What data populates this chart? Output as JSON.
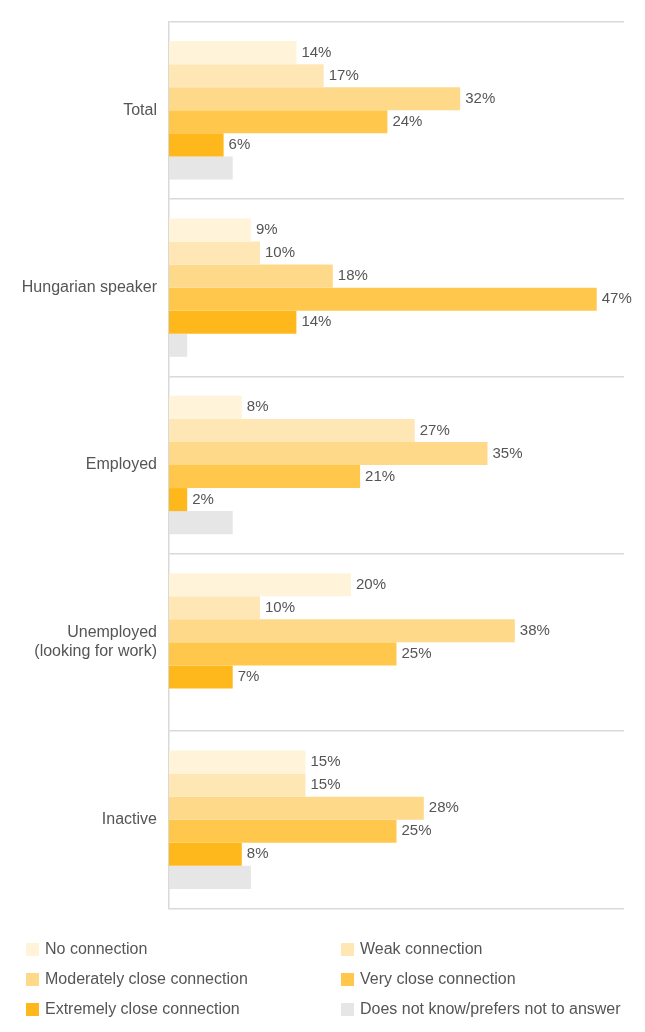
{
  "chart_data": {
    "type": "bar",
    "orientation": "horizontal",
    "categories": [
      "Total",
      "Hungarian speaker",
      "Employed",
      "Unemployed (looking for work)",
      "Inactive"
    ],
    "series": [
      {
        "name": "No connection",
        "color": "#fff3da",
        "values": [
          14,
          9,
          8,
          20,
          15
        ],
        "value_labels": [
          "14%",
          "9%",
          "8%",
          "20%",
          "15%"
        ]
      },
      {
        "name": "Weak connection",
        "color": "#ffe7b5",
        "values": [
          17,
          10,
          27,
          10,
          15
        ],
        "value_labels": [
          "17%",
          "10%",
          "27%",
          "10%",
          "15%"
        ]
      },
      {
        "name": "Moderately close connection",
        "color": "#ffd98a",
        "values": [
          32,
          18,
          35,
          38,
          28
        ],
        "value_labels": [
          "32%",
          "18%",
          "35%",
          "38%",
          "28%"
        ]
      },
      {
        "name": "Very close connection",
        "color": "#ffc84d",
        "values": [
          24,
          47,
          21,
          25,
          25
        ],
        "value_labels": [
          "24%",
          "47%",
          "21%",
          "25%",
          "25%"
        ]
      },
      {
        "name": "Extremely close connection",
        "color": "#ffb81c",
        "values": [
          6,
          14,
          2,
          7,
          8
        ],
        "value_labels": [
          "6%",
          "14%",
          "2%",
          "7%",
          "8%"
        ]
      },
      {
        "name": "Does not know/prefers not to answer",
        "color": "#e6e6e6",
        "values": [
          7,
          2,
          7,
          null,
          9
        ],
        "value_labels": [
          null,
          null,
          null,
          null,
          null
        ]
      }
    ],
    "xlim": [
      0,
      50
    ],
    "tick_labels": "y",
    "grid": "y",
    "legend": "bottom"
  }
}
